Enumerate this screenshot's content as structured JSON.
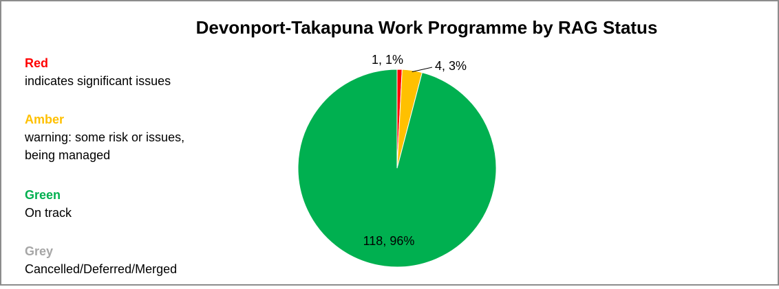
{
  "chart_data": {
    "type": "pie",
    "title": "Devonport-Takapuna Work Programme by RAG Status",
    "categories": [
      "Red",
      "Amber",
      "Green",
      "Grey"
    ],
    "descriptions": [
      [
        "indicates significant issues"
      ],
      [
        "warning:  some risk or issues,",
        "being managed"
      ],
      [
        "On track"
      ],
      [
        "Cancelled/Deferred/Merged"
      ]
    ],
    "values": [
      1,
      4,
      118,
      null
    ],
    "value_labels": [
      "1, 1%",
      "4, 3%",
      "118, 96%",
      null
    ],
    "colors": [
      "#ff0000",
      "#ffc000",
      "#00b050",
      "#a6a6a6"
    ]
  }
}
